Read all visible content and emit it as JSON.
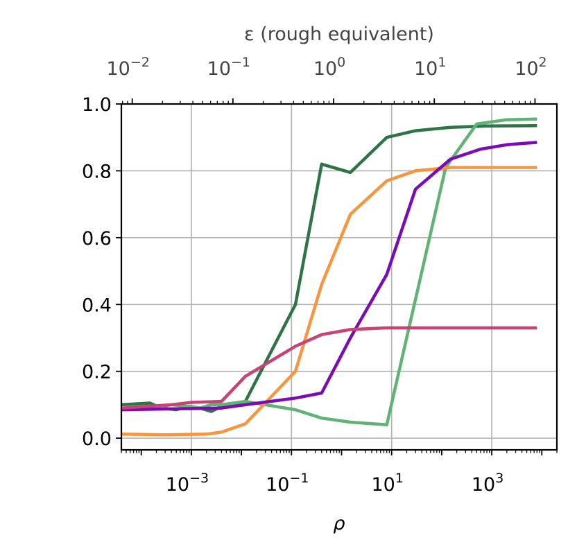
{
  "chart_data": {
    "type": "line",
    "xlabel": "ρ",
    "x_scale": "log",
    "xlim": [
      4e-05,
      20000
    ],
    "x_ticks": [
      {
        "value": 0.001,
        "base": "10",
        "exp": "−3"
      },
      {
        "value": 0.1,
        "base": "10",
        "exp": "−1"
      },
      {
        "value": 10,
        "base": "10",
        "exp": "1"
      },
      {
        "value": 1000,
        "base": "10",
        "exp": "3"
      }
    ],
    "ylim": [
      -0.035,
      1.0
    ],
    "y_ticks": [
      {
        "value": 0.0,
        "label": "0.0"
      },
      {
        "value": 0.2,
        "label": "0.2"
      },
      {
        "value": 0.4,
        "label": "0.4"
      },
      {
        "value": 0.6,
        "label": "0.6"
      },
      {
        "value": 0.8,
        "label": "0.8"
      },
      {
        "value": 1.0,
        "label": "1.0"
      }
    ],
    "grid": true,
    "top_axis": {
      "label": "ε (rough equivalent)",
      "scale": "log",
      "xlim": [
        0.0078,
        165
      ],
      "ticks": [
        {
          "value": 0.01,
          "base": "10",
          "exp": "−2"
        },
        {
          "value": 0.1,
          "base": "10",
          "exp": "−1"
        },
        {
          "value": 1,
          "base": "10",
          "exp": "0"
        },
        {
          "value": 10,
          "base": "10",
          "exp": "1"
        },
        {
          "value": 100,
          "base": "10",
          "exp": "2"
        }
      ]
    },
    "series": [
      {
        "color": "#2e7446",
        "x": [
          4e-05,
          0.00015,
          0.00025,
          0.0005,
          0.0009,
          0.0015,
          0.0025,
          0.004,
          0.012,
          0.12,
          0.4,
          1.5,
          8,
          30,
          150,
          800,
          8000
        ],
        "y": [
          0.1,
          0.105,
          0.09,
          0.085,
          0.095,
          0.09,
          0.08,
          0.095,
          0.11,
          0.4,
          0.82,
          0.795,
          0.9,
          0.92,
          0.93,
          0.934,
          0.935
        ]
      },
      {
        "color": "#5fb374",
        "x": [
          4e-05,
          0.00015,
          0.00025,
          0.0004,
          0.0008,
          0.0015,
          0.0025,
          0.004,
          0.012,
          0.12,
          0.4,
          1.5,
          8,
          120,
          500,
          2000,
          8000
        ],
        "y": [
          0.09,
          0.092,
          0.095,
          0.1,
          0.095,
          0.09,
          0.1,
          0.1,
          0.11,
          0.085,
          0.06,
          0.048,
          0.04,
          0.81,
          0.94,
          0.953,
          0.955
        ]
      },
      {
        "color": "#f7963e",
        "x": [
          4e-05,
          0.0003,
          0.002,
          0.004,
          0.012,
          0.12,
          0.4,
          1.5,
          8,
          30,
          150,
          8000
        ],
        "y": [
          0.012,
          0.01,
          0.012,
          0.018,
          0.043,
          0.2,
          0.46,
          0.67,
          0.77,
          0.8,
          0.81,
          0.81
        ]
      },
      {
        "color": "#7b0cb3",
        "x": [
          4e-05,
          0.0005,
          0.004,
          0.012,
          0.12,
          0.4,
          1.5,
          8,
          30,
          150,
          600,
          2000,
          8000
        ],
        "y": [
          0.085,
          0.088,
          0.09,
          0.1,
          0.12,
          0.135,
          0.3,
          0.49,
          0.745,
          0.835,
          0.865,
          0.878,
          0.885
        ]
      },
      {
        "color": "#c94276",
        "x": [
          4e-05,
          0.0004,
          0.001,
          0.004,
          0.012,
          0.12,
          0.4,
          1.5,
          8,
          150,
          8000
        ],
        "y": [
          0.09,
          0.1,
          0.107,
          0.11,
          0.185,
          0.275,
          0.31,
          0.325,
          0.33,
          0.33,
          0.33
        ]
      }
    ]
  }
}
